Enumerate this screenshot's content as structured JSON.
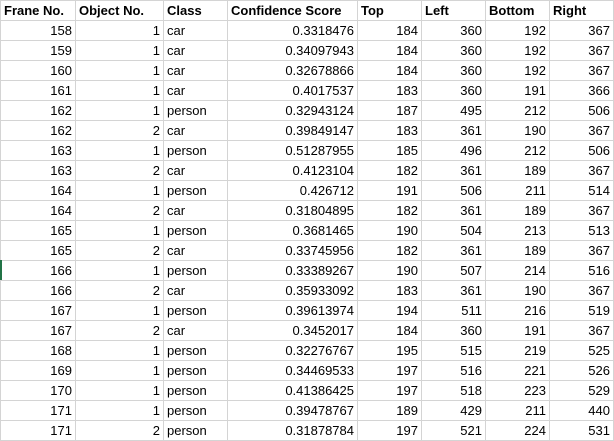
{
  "sheet": {
    "headers": [
      "Frane No.",
      "Object No.",
      "Class",
      "Confidence Score",
      "Top",
      "Left",
      "Bottom",
      "Right"
    ],
    "rows": [
      [
        "158",
        "1",
        "car",
        "0.3318476",
        "184",
        "360",
        "192",
        "367"
      ],
      [
        "159",
        "1",
        "car",
        "0.34097943",
        "184",
        "360",
        "192",
        "367"
      ],
      [
        "160",
        "1",
        "car",
        "0.32678866",
        "184",
        "360",
        "192",
        "367"
      ],
      [
        "161",
        "1",
        "car",
        "0.4017537",
        "183",
        "360",
        "191",
        "366"
      ],
      [
        "162",
        "1",
        "person",
        "0.32943124",
        "187",
        "495",
        "212",
        "506"
      ],
      [
        "162",
        "2",
        "car",
        "0.39849147",
        "183",
        "361",
        "190",
        "367"
      ],
      [
        "163",
        "1",
        "person",
        "0.51287955",
        "185",
        "496",
        "212",
        "506"
      ],
      [
        "163",
        "2",
        "car",
        "0.4123104",
        "182",
        "361",
        "189",
        "367"
      ],
      [
        "164",
        "1",
        "person",
        "0.426712",
        "191",
        "506",
        "211",
        "514"
      ],
      [
        "164",
        "2",
        "car",
        "0.31804895",
        "182",
        "361",
        "189",
        "367"
      ],
      [
        "165",
        "1",
        "person",
        "0.3681465",
        "190",
        "504",
        "213",
        "513"
      ],
      [
        "165",
        "2",
        "car",
        "0.33745956",
        "182",
        "361",
        "189",
        "367"
      ],
      [
        "166",
        "1",
        "person",
        "0.33389267",
        "190",
        "507",
        "214",
        "516"
      ],
      [
        "166",
        "2",
        "car",
        "0.35933092",
        "183",
        "361",
        "190",
        "367"
      ],
      [
        "167",
        "1",
        "person",
        "0.39613974",
        "194",
        "511",
        "216",
        "519"
      ],
      [
        "167",
        "2",
        "car",
        "0.3452017",
        "184",
        "360",
        "191",
        "367"
      ],
      [
        "168",
        "1",
        "person",
        "0.32276767",
        "195",
        "515",
        "219",
        "525"
      ],
      [
        "169",
        "1",
        "person",
        "0.34469533",
        "197",
        "516",
        "221",
        "526"
      ],
      [
        "170",
        "1",
        "person",
        "0.41386425",
        "197",
        "518",
        "223",
        "529"
      ],
      [
        "171",
        "1",
        "person",
        "0.39478767",
        "189",
        "429",
        "211",
        "440"
      ],
      [
        "171",
        "2",
        "person",
        "0.31878784",
        "197",
        "521",
        "224",
        "531"
      ]
    ],
    "selection_color": "#217346",
    "gridline_color": "#d4d4d4"
  }
}
